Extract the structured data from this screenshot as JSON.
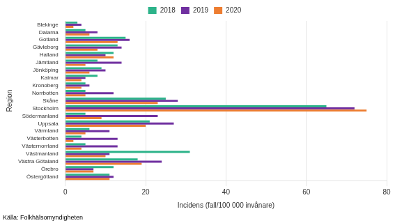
{
  "chart_data": {
    "type": "bar",
    "orientation": "horizontal",
    "xlabel": "Incidens (fall/100 000 invånare)",
    "ylabel": "Region",
    "annotations": [
      "Källa: Folkhälsomyndigheten"
    ],
    "categories": [
      "Östergötland",
      "Örebro",
      "Västra Götaland",
      "Västmanland",
      "Västernorrland",
      "Västerbotten",
      "Värmland",
      "Uppsala",
      "Södermanland",
      "Stockholm",
      "Skåne",
      "Norrbotten",
      "Kronoberg",
      "Kalmar",
      "Jönköping",
      "Jämtland",
      "Halland",
      "Gävleborg",
      "Gotland",
      "Dalarna",
      "Blekinge"
    ],
    "series": [
      {
        "name": "2018",
        "color": "#2db38a",
        "values": [
          11,
          12,
          18,
          31,
          5,
          4,
          6,
          21,
          5,
          65,
          25,
          5,
          5,
          8,
          9,
          8,
          12,
          13,
          15,
          5,
          3
        ]
      },
      {
        "name": "2019",
        "color": "#7030a0",
        "values": [
          12,
          7,
          24,
          11,
          13,
          13,
          11,
          27,
          23,
          72,
          28,
          12,
          6,
          5,
          10,
          14,
          10,
          14,
          16,
          8,
          4
        ]
      },
      {
        "name": "2020",
        "color": "#ed7d31",
        "values": [
          11,
          7,
          19,
          10,
          4,
          2,
          5,
          20,
          9,
          75,
          23,
          5,
          4,
          4,
          6,
          5,
          12,
          8,
          13,
          6,
          2
        ]
      }
    ],
    "xlim": [
      0,
      80
    ],
    "xticks": [
      0,
      20,
      40,
      60,
      80
    ],
    "grid": true,
    "legend": "top"
  }
}
